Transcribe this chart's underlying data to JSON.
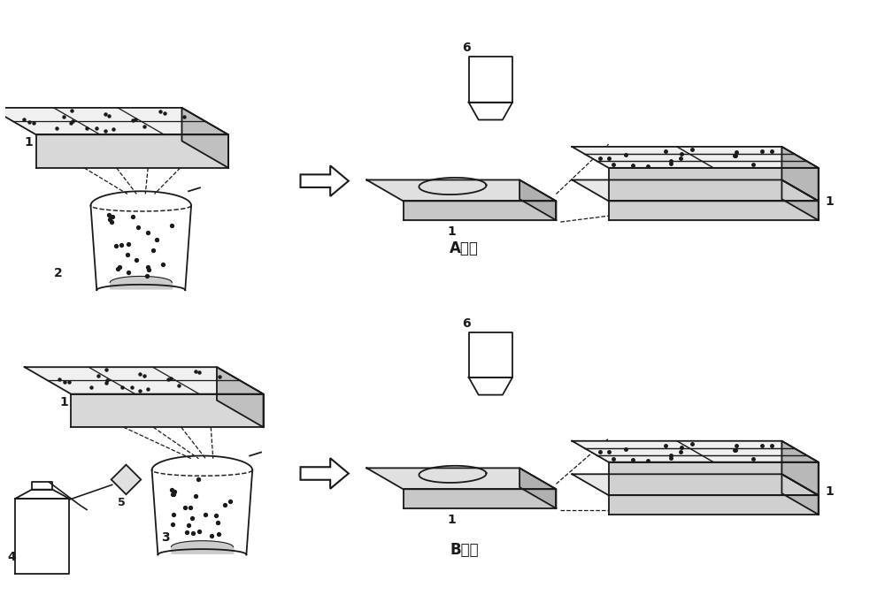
{
  "bg_color": "#ffffff",
  "line_color": "#1a1a1a",
  "title_A": "A途径",
  "title_B": "B途径",
  "label_1": "1",
  "label_2": "2",
  "label_3": "3",
  "label_4": "4",
  "label_5": "5",
  "label_6": "6",
  "fig_width": 10.0,
  "fig_height": 6.73
}
